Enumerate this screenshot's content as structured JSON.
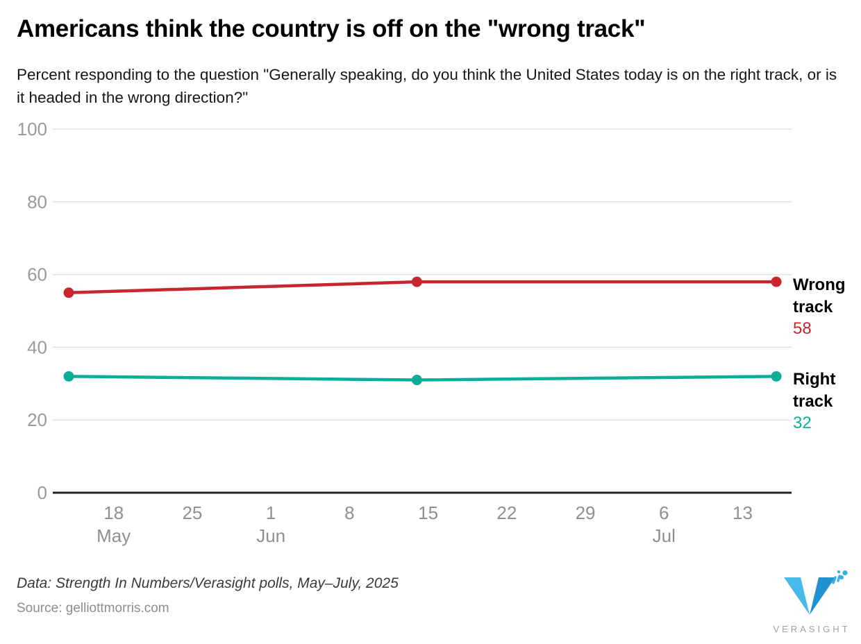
{
  "chart_data": {
    "type": "line",
    "title": "Americans think the country is off on the \"wrong track\"",
    "subtitle": "Percent responding to the question \"Generally speaking, do you think the United States today is on the right track, or is it headed in the wrong direction?\"",
    "ylabel": "",
    "xlabel": "",
    "ylim": [
      0,
      100
    ],
    "y_ticks": [
      0,
      20,
      40,
      60,
      80,
      100
    ],
    "grid": "horizontal-only",
    "legend_position": "end-of-line-labels-right",
    "x_unit": "days since May 14, 2025",
    "x_domain_days": [
      -1.5,
      64.5
    ],
    "x_ticks": [
      {
        "day": 4,
        "label": "18",
        "month": "May"
      },
      {
        "day": 11,
        "label": "25"
      },
      {
        "day": 18,
        "label": "1",
        "month": "Jun"
      },
      {
        "day": 25,
        "label": "8"
      },
      {
        "day": 32,
        "label": "15"
      },
      {
        "day": 39,
        "label": "22"
      },
      {
        "day": 46,
        "label": "29"
      },
      {
        "day": 53,
        "label": "6",
        "month": "Jul"
      },
      {
        "day": 60,
        "label": "13"
      }
    ],
    "series": [
      {
        "name": "Wrong track",
        "color": "#c6262c",
        "end_value_label": "58",
        "points": [
          {
            "day": 0,
            "date": "May 14",
            "value": 55
          },
          {
            "day": 31,
            "date": "Jun 14",
            "value": 58
          },
          {
            "day": 63,
            "date": "Jul 16",
            "value": 58
          }
        ]
      },
      {
        "name": "Right track",
        "color": "#0cae97",
        "end_value_label": "32",
        "points": [
          {
            "day": 0,
            "date": "May 14",
            "value": 32
          },
          {
            "day": 31,
            "date": "Jun 14",
            "value": 31
          },
          {
            "day": 63,
            "date": "Jul 16",
            "value": 32
          }
        ]
      }
    ]
  },
  "footer": {
    "data_note": "Data: Strength In Numbers/Verasight polls, May–July, 2025",
    "source": "Source: gelliottmorris.com",
    "logo_text": "VERASIGHT"
  },
  "colors": {
    "wrong_track": "#c6262c",
    "right_track": "#0cae97",
    "gridline": "#e2e2e2",
    "axis_line": "#262626",
    "tick_text": "#8f8f8f",
    "logo_blue_light": "#47bae9",
    "logo_blue_dark": "#1f93d1",
    "logo_text_gray": "#99a1a8"
  }
}
